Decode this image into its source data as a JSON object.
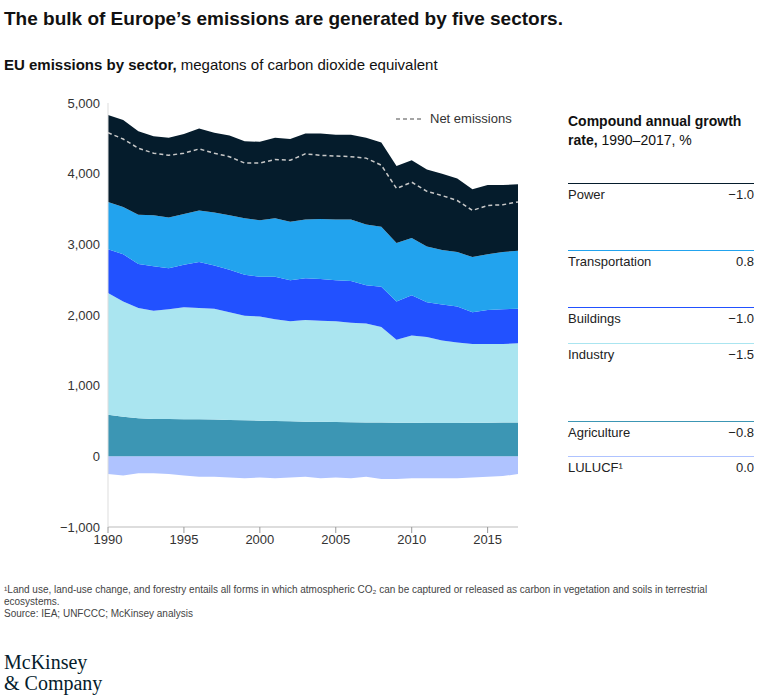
{
  "chart_data": {
    "type": "area",
    "title": "The bulk of Europe’s emissions are generated by five sectors.",
    "subtitle": "EU emissions by sector,",
    "unit": "megatons of carbon dioxide equivalent",
    "stacked": true,
    "grid": false,
    "legend": "upper right",
    "cagr_title": "Compound annual growth rate,",
    "cagr_period": "1990–2017, %",
    "x": [
      1990,
      1991,
      1992,
      1993,
      1994,
      1995,
      1996,
      1997,
      1998,
      1999,
      2000,
      2001,
      2002,
      2003,
      2004,
      2005,
      2006,
      2007,
      2008,
      2009,
      2010,
      2011,
      2012,
      2013,
      2014,
      2015,
      2016,
      2017
    ],
    "xlim": [
      1990,
      2017
    ],
    "xticks": [
      1990,
      1995,
      2000,
      2005,
      2010,
      2015
    ],
    "ylim": [
      -1000,
      5000
    ],
    "yticks": [
      {
        "value": -1000,
        "label": "−1,000"
      },
      0,
      {
        "value": 1000,
        "label": "1,000"
      },
      {
        "value": 2000,
        "label": "2,000"
      },
      {
        "value": 3000,
        "label": "3,000"
      },
      {
        "value": 4000,
        "label": "4,000"
      },
      {
        "value": 5000,
        "label": "5,000"
      }
    ],
    "series": [
      {
        "name": "Power",
        "color": "#051c2c",
        "type": "area",
        "cagr": -1.0,
        "cagr_label": "−1.0",
        "values": [
          1230,
          1230,
          1180,
          1120,
          1130,
          1130,
          1160,
          1130,
          1130,
          1090,
          1110,
          1140,
          1170,
          1220,
          1210,
          1200,
          1200,
          1230,
          1190,
          1090,
          1100,
          1090,
          1080,
          1040,
          960,
          980,
          950,
          940
        ]
      },
      {
        "name": "Transportation",
        "color": "#22a3ee",
        "type": "area",
        "cagr": 0.8,
        "cagr_label": "0.8",
        "values": [
          670,
          670,
          700,
          720,
          720,
          720,
          730,
          750,
          770,
          800,
          800,
          830,
          830,
          830,
          850,
          860,
          870,
          860,
          850,
          830,
          810,
          790,
          770,
          770,
          780,
          790,
          810,
          820
        ]
      },
      {
        "name": "Buildings",
        "color": "#2251ff",
        "type": "area",
        "cagr": -1.0,
        "cagr_label": "−1.0",
        "values": [
          620,
          670,
          620,
          630,
          580,
          600,
          650,
          610,
          600,
          580,
          560,
          600,
          580,
          590,
          590,
          580,
          590,
          540,
          570,
          540,
          570,
          490,
          510,
          510,
          450,
          480,
          490,
          490
        ]
      },
      {
        "name": "Industry",
        "color": "#aae5f0",
        "type": "area",
        "cagr": -1.5,
        "cagr_label": "−1.5",
        "values": [
          1720,
          1630,
          1560,
          1530,
          1550,
          1585,
          1575,
          1570,
          1525,
          1480,
          1475,
          1440,
          1415,
          1440,
          1430,
          1425,
          1407,
          1400,
          1350,
          1175,
          1235,
          1220,
          1170,
          1140,
          1115,
          1115,
          1112,
          1120
        ]
      },
      {
        "name": "Agriculture",
        "color": "#3c96b4",
        "type": "area",
        "cagr": -0.8,
        "cagr_label": "−0.8",
        "values": [
          590,
          560,
          540,
          530,
          530,
          525,
          525,
          520,
          515,
          510,
          505,
          500,
          495,
          490,
          490,
          485,
          483,
          480,
          480,
          475,
          475,
          470,
          470,
          470,
          475,
          475,
          478,
          480
        ]
      },
      {
        "name": "LULUCF¹",
        "color": "#afc3ff",
        "type": "area",
        "cagr": 0.0,
        "cagr_label": "0.0",
        "values": [
          -250,
          -270,
          -240,
          -240,
          -250,
          -270,
          -290,
          -290,
          -300,
          -310,
          -300,
          -310,
          -300,
          -290,
          -310,
          -300,
          -310,
          -290,
          -320,
          -320,
          -310,
          -310,
          -310,
          -310,
          -300,
          -290,
          -280,
          -250
        ]
      },
      {
        "name": "Net emissions",
        "color": "#c8c8c8",
        "type": "line",
        "line_style": "dashed",
        "values": [
          4580,
          4490,
          4360,
          4290,
          4260,
          4290,
          4350,
          4290,
          4240,
          4150,
          4150,
          4200,
          4190,
          4280,
          4260,
          4250,
          4240,
          4220,
          4120,
          3790,
          3880,
          3750,
          3690,
          3620,
          3480,
          3550,
          3560,
          3600
        ]
      }
    ],
    "footnote": "¹Land use, land-use change, and forestry entails all forms in which atmospheric CO₂ can be captured or released as carbon in vegetation and soils in terrestrial ecosystems.",
    "source": "Source: IEA; UNFCCC; McKinsey analysis",
    "logo": [
      "McKinsey",
      "& Company"
    ]
  }
}
